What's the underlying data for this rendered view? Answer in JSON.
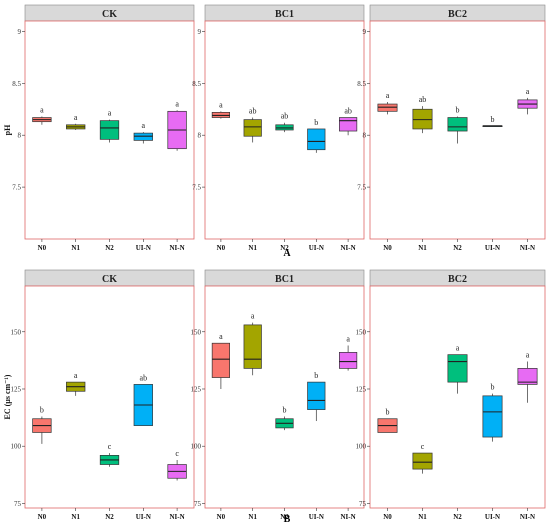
{
  "figure": {
    "row_labels": [
      "A",
      "B"
    ]
  },
  "chart_data": [
    {
      "type": "box",
      "panel": "CK",
      "row": "A",
      "ylabel": "pH",
      "ylim": [
        7.0,
        9.1
      ],
      "yticks": [
        7.5,
        8.0,
        8.5,
        9.0
      ],
      "categories": [
        "N0",
        "N1",
        "N2",
        "UI-N",
        "NI-N"
      ],
      "boxes": [
        {
          "min": 8.1,
          "q1": 8.13,
          "median": 8.15,
          "q3": 8.17,
          "max": 8.18
        },
        {
          "min": 8.05,
          "q1": 8.06,
          "median": 8.08,
          "q3": 8.1,
          "max": 8.11
        },
        {
          "min": 7.93,
          "q1": 7.96,
          "median": 8.07,
          "q3": 8.14,
          "max": 8.15
        },
        {
          "min": 7.92,
          "q1": 7.95,
          "median": 7.99,
          "q3": 8.02,
          "max": 8.03
        },
        {
          "min": 7.85,
          "q1": 7.87,
          "median": 8.05,
          "q3": 8.23,
          "max": 8.24
        }
      ],
      "letters": [
        "a",
        "a",
        "a",
        "a",
        "a"
      ]
    },
    {
      "type": "box",
      "panel": "BC1",
      "row": "A",
      "ylim": [
        7.0,
        9.1
      ],
      "yticks": [
        7.5,
        8.0,
        8.5,
        9.0
      ],
      "categories": [
        "N0",
        "N1",
        "N2",
        "UI-N",
        "NI-N"
      ],
      "boxes": [
        {
          "min": 8.16,
          "q1": 8.17,
          "median": 8.19,
          "q3": 8.22,
          "max": 8.23
        },
        {
          "min": 7.93,
          "q1": 7.99,
          "median": 8.08,
          "q3": 8.15,
          "max": 8.17
        },
        {
          "min": 8.03,
          "q1": 8.05,
          "median": 8.07,
          "q3": 8.1,
          "max": 8.12
        },
        {
          "min": 7.83,
          "q1": 7.86,
          "median": 7.94,
          "q3": 8.06,
          "max": 8.06
        },
        {
          "min": 8.0,
          "q1": 8.04,
          "median": 8.14,
          "q3": 8.17,
          "max": 8.17
        }
      ],
      "letters": [
        "a",
        "ab",
        "ab",
        "b",
        "ab"
      ]
    },
    {
      "type": "box",
      "panel": "BC2",
      "row": "A",
      "ylim": [
        7.0,
        9.1
      ],
      "yticks": [
        7.5,
        8.0,
        8.5,
        9.0
      ],
      "categories": [
        "N0",
        "N1",
        "N2",
        "UI-N",
        "NI-N"
      ],
      "boxes": [
        {
          "min": 8.2,
          "q1": 8.23,
          "median": 8.27,
          "q3": 8.3,
          "max": 8.32
        },
        {
          "min": 8.02,
          "q1": 8.06,
          "median": 8.15,
          "q3": 8.25,
          "max": 8.28
        },
        {
          "min": 7.92,
          "q1": 8.04,
          "median": 8.08,
          "q3": 8.17,
          "max": 8.18
        },
        {
          "min": 8.09,
          "q1": 8.09,
          "median": 8.09,
          "q3": 8.09,
          "max": 8.09
        },
        {
          "min": 8.2,
          "q1": 8.26,
          "median": 8.3,
          "q3": 8.34,
          "max": 8.36
        }
      ],
      "letters": [
        "a",
        "ab",
        "b",
        "b",
        "a"
      ]
    },
    {
      "type": "box",
      "panel": "CK",
      "row": "B",
      "ylabel": "EC  (μs cm⁻¹)",
      "ylim": [
        73,
        170
      ],
      "yticks": [
        75,
        100,
        125,
        150
      ],
      "categories": [
        "N0",
        "N1",
        "N2",
        "UI-N",
        "NI-N"
      ],
      "boxes": [
        {
          "min": 101,
          "q1": 106,
          "median": 109,
          "q3": 112,
          "max": 113
        },
        {
          "min": 122,
          "q1": 124,
          "median": 126,
          "q3": 128,
          "max": 128
        },
        {
          "min": 91,
          "q1": 92,
          "median": 94,
          "q3": 96,
          "max": 97
        },
        {
          "min": 109,
          "q1": 109,
          "median": 118,
          "q3": 127,
          "max": 127
        },
        {
          "min": 85,
          "q1": 86,
          "median": 89,
          "q3": 92,
          "max": 94
        }
      ],
      "letters": [
        "b",
        "a",
        "c",
        "ab",
        "c"
      ]
    },
    {
      "type": "box",
      "panel": "BC1",
      "row": "B",
      "ylim": [
        73,
        170
      ],
      "yticks": [
        75,
        100,
        125,
        150
      ],
      "categories": [
        "N0",
        "N1",
        "N2",
        "UI-N",
        "NI-N"
      ],
      "boxes": [
        {
          "min": 125,
          "q1": 130,
          "median": 138,
          "q3": 145,
          "max": 145
        },
        {
          "min": 131,
          "q1": 134,
          "median": 138,
          "q3": 153,
          "max": 154
        },
        {
          "min": 107,
          "q1": 108,
          "median": 110,
          "q3": 112,
          "max": 113
        },
        {
          "min": 111,
          "q1": 116,
          "median": 120,
          "q3": 128,
          "max": 128
        },
        {
          "min": 133,
          "q1": 134,
          "median": 137,
          "q3": 141,
          "max": 144
        }
      ],
      "letters": [
        "a",
        "a",
        "b",
        "b",
        "a"
      ]
    },
    {
      "type": "box",
      "panel": "BC2",
      "row": "B",
      "ylim": [
        73,
        170
      ],
      "yticks": [
        75,
        100,
        125,
        150
      ],
      "categories": [
        "N0",
        "N1",
        "N2",
        "UI-N",
        "NI-N"
      ],
      "boxes": [
        {
          "min": 106,
          "q1": 106,
          "median": 109,
          "q3": 112,
          "max": 112
        },
        {
          "min": 88,
          "q1": 90,
          "median": 93,
          "q3": 97,
          "max": 97
        },
        {
          "min": 123,
          "q1": 128,
          "median": 137,
          "q3": 140,
          "max": 140
        },
        {
          "min": 102,
          "q1": 104,
          "median": 115,
          "q3": 122,
          "max": 123
        },
        {
          "min": 119,
          "q1": 127,
          "median": 128,
          "q3": 134,
          "max": 137
        }
      ],
      "letters": [
        "b",
        "c",
        "a",
        "b",
        "a"
      ]
    }
  ],
  "colors": {
    "N0": "#F8766D",
    "N1": "#A3A500",
    "N2": "#00BF7D",
    "UI-N": "#00B0F6",
    "NI-N": "#E76BF3",
    "strip": "#D9D9D9",
    "border": "#E06666",
    "frame_gray": "#888888"
  }
}
